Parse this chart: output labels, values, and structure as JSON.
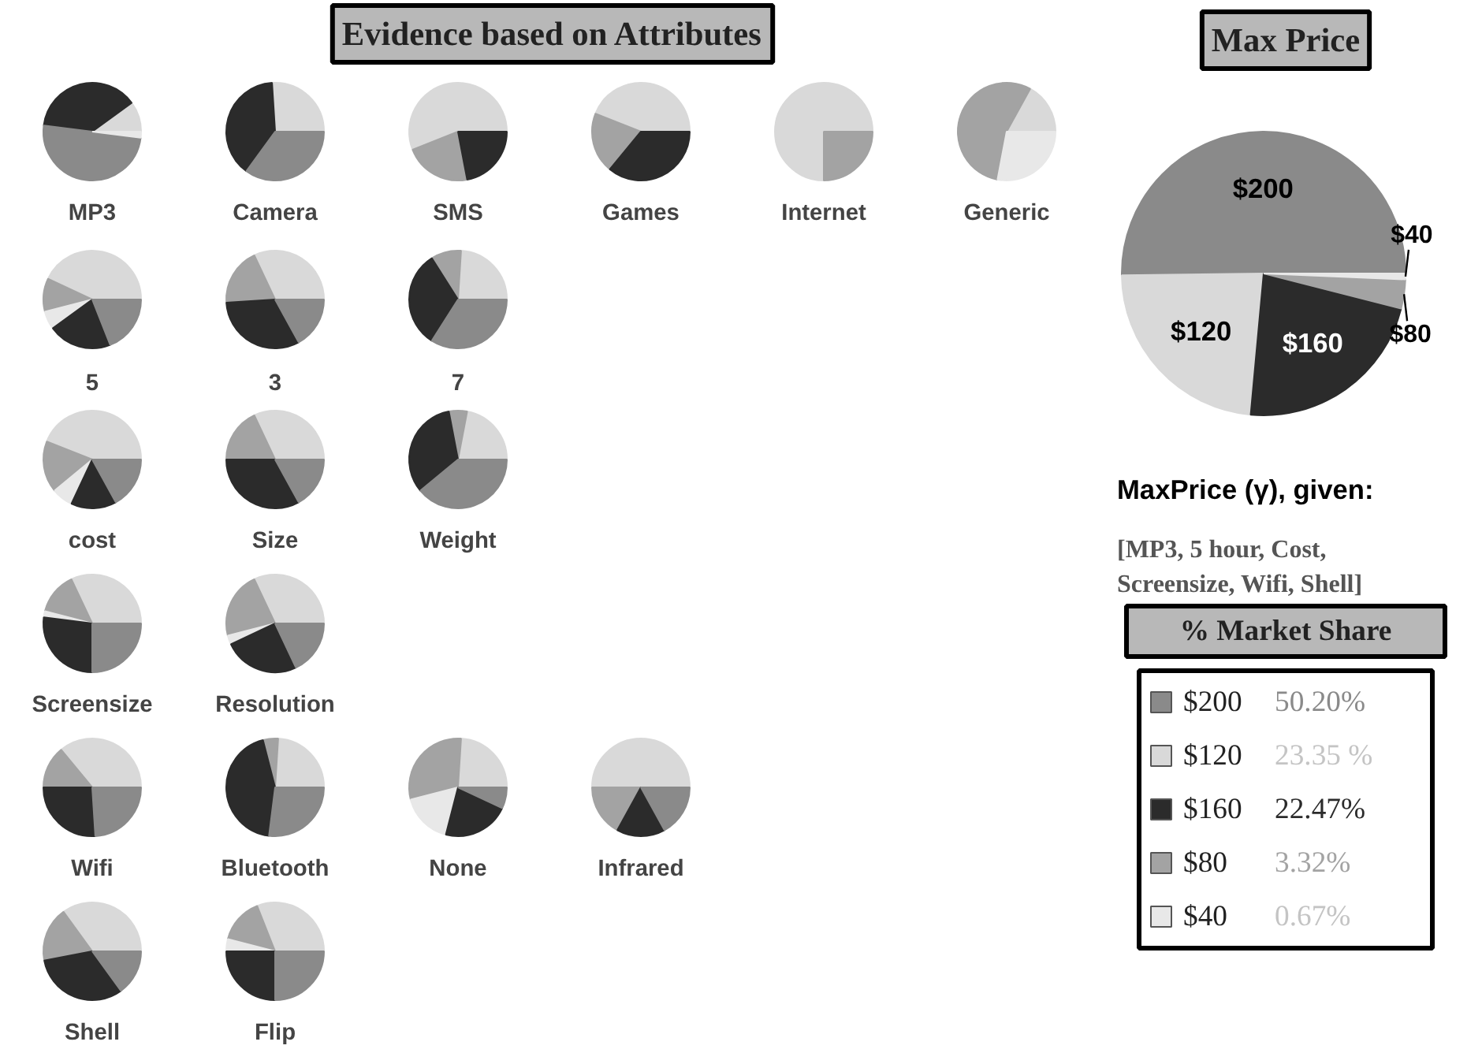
{
  "chart_data": [
    {
      "type": "other",
      "title": "Evidence based on Attributes"
    },
    {
      "type": "pie",
      "title": "MP3",
      "categories": [
        null,
        null,
        null,
        null
      ],
      "values": [
        10,
        38,
        50,
        2
      ],
      "colors": [
        "#d9d9d9",
        "#2b2b2b",
        "#8a8a8a",
        "#e8e8e8"
      ]
    },
    {
      "type": "pie",
      "title": "Camera",
      "categories": [
        null,
        null,
        null
      ],
      "values": [
        26,
        39,
        35
      ],
      "colors": [
        "#d9d9d9",
        "#2b2b2b",
        "#8a8a8a"
      ]
    },
    {
      "type": "pie",
      "title": "SMS",
      "categories": [
        null,
        null,
        null
      ],
      "values": [
        56,
        22,
        22
      ],
      "colors": [
        "#d9d9d9",
        "#a3a3a3",
        "#2b2b2b"
      ]
    },
    {
      "type": "pie",
      "title": "Games",
      "categories": [
        null,
        null,
        null
      ],
      "values": [
        44,
        20,
        36
      ],
      "colors": [
        "#d9d9d9",
        "#a3a3a3",
        "#2b2b2b"
      ]
    },
    {
      "type": "pie",
      "title": "Internet",
      "categories": [
        null,
        null
      ],
      "values": [
        75,
        25
      ],
      "colors": [
        "#d9d9d9",
        "#a3a3a3"
      ]
    },
    {
      "type": "pie",
      "title": "Generic",
      "categories": [
        null,
        null,
        null
      ],
      "values": [
        17,
        55,
        28
      ],
      "colors": [
        "#d9d9d9",
        "#a3a3a3",
        "#e8e8e8"
      ]
    },
    {
      "type": "pie",
      "title": "5",
      "categories": [
        null,
        null,
        null,
        null,
        null
      ],
      "values": [
        43,
        11,
        6,
        21,
        19
      ],
      "colors": [
        "#d9d9d9",
        "#a3a3a3",
        "#e8e8e8",
        "#2b2b2b",
        "#8a8a8a"
      ]
    },
    {
      "type": "pie",
      "title": "3",
      "categories": [
        null,
        null,
        null,
        null
      ],
      "values": [
        32,
        19,
        32,
        17
      ],
      "colors": [
        "#d9d9d9",
        "#a3a3a3",
        "#2b2b2b",
        "#8a8a8a"
      ]
    },
    {
      "type": "pie",
      "title": "7",
      "categories": [
        null,
        null,
        null,
        null
      ],
      "values": [
        24,
        10,
        32,
        34
      ],
      "colors": [
        "#d9d9d9",
        "#a3a3a3",
        "#2b2b2b",
        "#8a8a8a"
      ]
    },
    {
      "type": "pie",
      "title": "cost",
      "categories": [
        null,
        null,
        null,
        null,
        null
      ],
      "values": [
        44,
        17,
        7,
        15,
        17
      ],
      "colors": [
        "#d9d9d9",
        "#a3a3a3",
        "#e8e8e8",
        "#2b2b2b",
        "#8a8a8a"
      ]
    },
    {
      "type": "pie",
      "title": "Size",
      "categories": [
        null,
        null,
        null,
        null
      ],
      "values": [
        32,
        18,
        33,
        17
      ],
      "colors": [
        "#d9d9d9",
        "#a3a3a3",
        "#2b2b2b",
        "#8a8a8a"
      ]
    },
    {
      "type": "pie",
      "title": "Weight",
      "categories": [
        null,
        null,
        null,
        null
      ],
      "values": [
        22,
        6,
        33,
        39
      ],
      "colors": [
        "#d9d9d9",
        "#a3a3a3",
        "#2b2b2b",
        "#8a8a8a"
      ]
    },
    {
      "type": "pie",
      "title": "Screensize",
      "categories": [
        null,
        null,
        null,
        null,
        null
      ],
      "values": [
        32,
        14,
        2,
        27,
        25
      ],
      "colors": [
        "#d9d9d9",
        "#a3a3a3",
        "#e8e8e8",
        "#2b2b2b",
        "#8a8a8a"
      ]
    },
    {
      "type": "pie",
      "title": "Resolution",
      "categories": [
        null,
        null,
        null,
        null,
        null
      ],
      "values": [
        32,
        22,
        3,
        25,
        18
      ],
      "colors": [
        "#d9d9d9",
        "#a3a3a3",
        "#e8e8e8",
        "#2b2b2b",
        "#8a8a8a"
      ]
    },
    {
      "type": "pie",
      "title": "Wifi",
      "categories": [
        null,
        null,
        null,
        null
      ],
      "values": [
        36,
        14,
        26,
        24
      ],
      "colors": [
        "#d9d9d9",
        "#a3a3a3",
        "#2b2b2b",
        "#8a8a8a"
      ]
    },
    {
      "type": "pie",
      "title": "Bluetooth",
      "categories": [
        null,
        null,
        null,
        null
      ],
      "values": [
        24,
        5,
        44,
        27
      ],
      "colors": [
        "#d9d9d9",
        "#a3a3a3",
        "#2b2b2b",
        "#8a8a8a"
      ]
    },
    {
      "type": "pie",
      "title": "None",
      "categories": [
        null,
        null,
        null,
        null,
        null
      ],
      "values": [
        24,
        30,
        17,
        22,
        7
      ],
      "colors": [
        "#d9d9d9",
        "#a3a3a3",
        "#e8e8e8",
        "#2b2b2b",
        "#8a8a8a"
      ]
    },
    {
      "type": "pie",
      "title": "Infrared",
      "categories": [
        null,
        null,
        null,
        null
      ],
      "values": [
        50,
        17,
        16,
        17
      ],
      "colors": [
        "#d9d9d9",
        "#a3a3a3",
        "#2b2b2b",
        "#8a8a8a"
      ]
    },
    {
      "type": "pie",
      "title": "Shell",
      "categories": [
        null,
        null,
        null,
        null
      ],
      "values": [
        35,
        18,
        32,
        15
      ],
      "colors": [
        "#d9d9d9",
        "#a3a3a3",
        "#2b2b2b",
        "#8a8a8a"
      ]
    },
    {
      "type": "pie",
      "title": "Flip",
      "categories": [
        null,
        null,
        null,
        null,
        null
      ],
      "values": [
        31,
        15,
        4,
        25,
        25
      ],
      "colors": [
        "#d9d9d9",
        "#a3a3a3",
        "#e8e8e8",
        "#2b2b2b",
        "#8a8a8a"
      ]
    },
    {
      "type": "pie",
      "title": "Max Price",
      "subtitle": "MaxPrice (γ), given:",
      "annotations": [
        "[MP3, 5 hour, Cost, Screensize, Wifi, Shell]"
      ],
      "legend_title": "% Market Share",
      "legend": "bottom",
      "categories": [
        "$200",
        "$120",
        "$160",
        "$80",
        "$40"
      ],
      "values": [
        50.2,
        23.35,
        22.47,
        3.32,
        0.67
      ],
      "value_labels": [
        "50.20%",
        "23.35 %",
        "22.47%",
        "3.32%",
        "0.67%"
      ],
      "colors": [
        "#8a8a8a",
        "#d9d9d9",
        "#2b2b2b",
        "#a3a3a3",
        "#e8e8e8"
      ]
    }
  ]
}
